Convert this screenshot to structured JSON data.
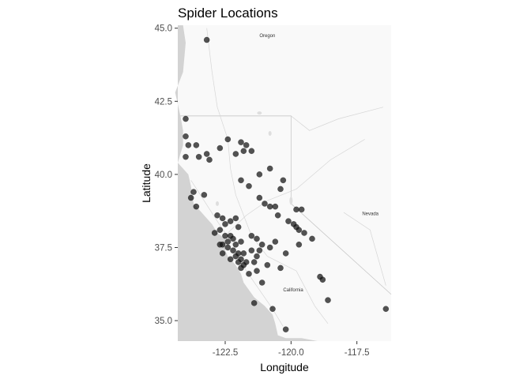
{
  "chart_data": {
    "type": "scatter",
    "title": "Spider Locations",
    "xlabel": "Longitude",
    "ylabel": "Latitude",
    "xlim": [
      -124.3,
      -116.2
    ],
    "ylim": [
      34.3,
      45.1
    ],
    "xticks": [
      -122.5,
      -120.0,
      -117.5
    ],
    "xtick_labels": [
      "-122.5",
      "-120.0",
      "-117.5"
    ],
    "yticks": [
      35.0,
      37.5,
      40.0,
      42.5,
      45.0
    ],
    "ytick_labels": [
      "35.0",
      "37.5",
      "40.0",
      "42.5",
      "45.0"
    ],
    "grid": false,
    "legend": "none",
    "background": "basemap",
    "point_color": "#111111",
    "ocean_color": "#d3d3d3",
    "land_color": "#f9f9f9",
    "map_labels": {
      "oregon": "Oregon",
      "nevada": "Nevada",
      "california": "California"
    },
    "points": [
      [
        -123.2,
        44.6
      ],
      [
        -124.0,
        41.9
      ],
      [
        -124.0,
        41.3
      ],
      [
        -123.9,
        41.0
      ],
      [
        -123.6,
        41.0
      ],
      [
        -123.5,
        40.6
      ],
      [
        -124.0,
        40.6
      ],
      [
        -123.2,
        40.7
      ],
      [
        -122.7,
        40.9
      ],
      [
        -122.4,
        41.2
      ],
      [
        -121.9,
        41.1
      ],
      [
        -121.7,
        41.0
      ],
      [
        -121.8,
        40.8
      ],
      [
        -122.1,
        40.7
      ],
      [
        -121.5,
        40.8
      ],
      [
        -123.1,
        40.5
      ],
      [
        -121.2,
        40.0
      ],
      [
        -120.8,
        40.2
      ],
      [
        -120.3,
        39.8
      ],
      [
        -120.4,
        39.5
      ],
      [
        -121.6,
        39.6
      ],
      [
        -121.9,
        39.8
      ],
      [
        -123.7,
        39.4
      ],
      [
        -123.8,
        39.2
      ],
      [
        -123.3,
        39.3
      ],
      [
        -123.6,
        38.9
      ],
      [
        -121.2,
        39.2
      ],
      [
        -121.0,
        39.0
      ],
      [
        -120.8,
        38.9
      ],
      [
        -120.6,
        38.9
      ],
      [
        -120.5,
        38.6
      ],
      [
        -119.8,
        38.8
      ],
      [
        -119.6,
        38.8
      ],
      [
        -119.9,
        38.3
      ],
      [
        -120.1,
        38.4
      ],
      [
        -119.8,
        38.2
      ],
      [
        -119.7,
        38.1
      ],
      [
        -119.5,
        38.0
      ],
      [
        -119.2,
        37.8
      ],
      [
        -122.8,
        38.6
      ],
      [
        -122.6,
        38.5
      ],
      [
        -122.5,
        38.3
      ],
      [
        -122.3,
        38.4
      ],
      [
        -122.1,
        38.5
      ],
      [
        -122.0,
        38.2
      ],
      [
        -122.7,
        38.1
      ],
      [
        -122.9,
        38.0
      ],
      [
        -122.5,
        37.9
      ],
      [
        -122.3,
        37.9
      ],
      [
        -122.2,
        37.8
      ],
      [
        -122.4,
        37.7
      ],
      [
        -122.6,
        37.6
      ],
      [
        -122.1,
        37.6
      ],
      [
        -121.9,
        37.7
      ],
      [
        -122.4,
        37.5
      ],
      [
        -122.2,
        37.4
      ],
      [
        -122.0,
        37.3
      ],
      [
        -121.8,
        37.3
      ],
      [
        -122.1,
        37.2
      ],
      [
        -121.9,
        37.1
      ],
      [
        -122.3,
        37.1
      ],
      [
        -121.7,
        37.0
      ],
      [
        -122.0,
        37.0
      ],
      [
        -122.6,
        37.3
      ],
      [
        -122.7,
        37.6
      ],
      [
        -121.5,
        37.9
      ],
      [
        -121.3,
        37.8
      ],
      [
        -121.5,
        37.4
      ],
      [
        -121.3,
        37.2
      ],
      [
        -121.1,
        37.6
      ],
      [
        -121.2,
        37.4
      ],
      [
        -120.8,
        37.5
      ],
      [
        -120.6,
        37.7
      ],
      [
        -120.2,
        37.3
      ],
      [
        -121.9,
        36.8
      ],
      [
        -121.6,
        36.6
      ],
      [
        -121.8,
        36.9
      ],
      [
        -121.4,
        37.0
      ],
      [
        -121.3,
        36.7
      ],
      [
        -120.9,
        36.9
      ],
      [
        -121.1,
        36.3
      ],
      [
        -120.4,
        36.8
      ],
      [
        -119.7,
        37.6
      ],
      [
        -118.9,
        36.5
      ],
      [
        -118.8,
        36.4
      ],
      [
        -118.6,
        35.7
      ],
      [
        -121.4,
        35.6
      ],
      [
        -120.7,
        35.4
      ],
      [
        -120.2,
        34.7
      ],
      [
        -116.4,
        35.4
      ]
    ]
  }
}
